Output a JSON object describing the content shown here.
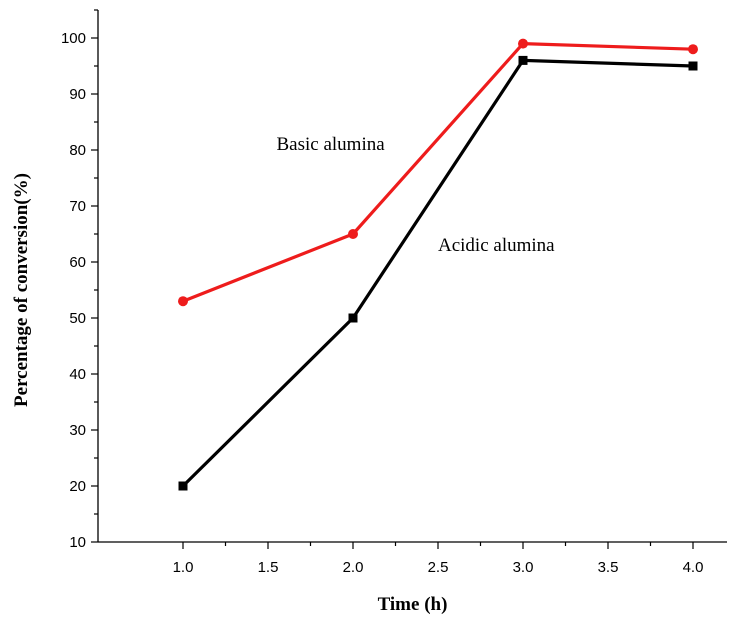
{
  "chart_data": {
    "type": "line",
    "title": "",
    "xlabel": "Time (h)",
    "ylabel": "Percentage of conversion(%)",
    "xlim": [
      0.5,
      4.2
    ],
    "ylim": [
      10,
      105
    ],
    "xticks": [
      1.0,
      1.5,
      2.0,
      2.5,
      3.0,
      3.5,
      4.0
    ],
    "xtick_labels": [
      "1.0",
      "1.5",
      "2.0",
      "2.5",
      "3.0",
      "3.5",
      "4.0"
    ],
    "yticks": [
      10,
      20,
      30,
      40,
      50,
      60,
      70,
      80,
      90,
      100
    ],
    "ytick_labels": [
      "10",
      "20",
      "30",
      "40",
      "50",
      "60",
      "70",
      "80",
      "90",
      "100"
    ],
    "grid": false,
    "series": [
      {
        "name": "Basic alumina",
        "color": "#ee1c1c",
        "marker": "circle",
        "x": [
          1.0,
          2.0,
          3.0,
          4.0
        ],
        "values": [
          53,
          65,
          99,
          98
        ]
      },
      {
        "name": "Acidic alumina",
        "color": "#000000",
        "marker": "square",
        "x": [
          1.0,
          2.0,
          3.0,
          4.0
        ],
        "values": [
          20,
          50,
          96,
          95
        ]
      }
    ],
    "annotations": [
      {
        "text": "Basic alumina",
        "x": 1.55,
        "y": 80,
        "series": 0
      },
      {
        "text": "Acidic alumina",
        "x": 2.5,
        "y": 62,
        "series": 1
      }
    ]
  }
}
